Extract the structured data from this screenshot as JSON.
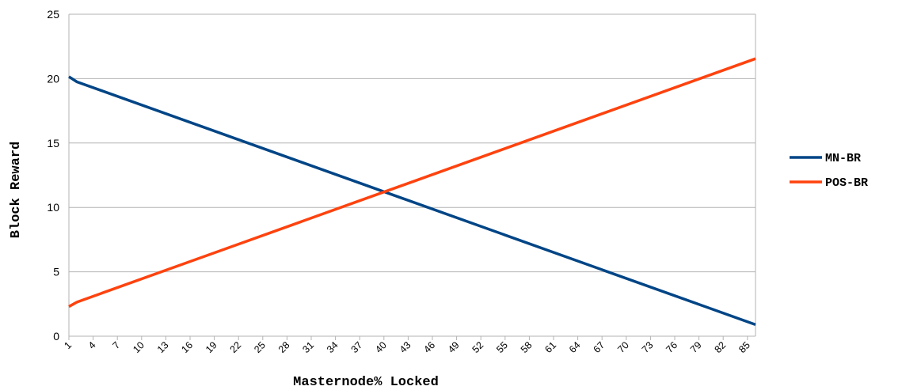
{
  "chart_data": {
    "type": "line",
    "xlabel": "Masternode% Locked",
    "ylabel": "Block Reward",
    "ylim": [
      0,
      25
    ],
    "yticks": [
      0,
      5,
      10,
      15,
      20,
      25
    ],
    "xlim": [
      1,
      86
    ],
    "xticks": [
      1,
      4,
      7,
      10,
      13,
      16,
      19,
      22,
      25,
      28,
      31,
      34,
      37,
      40,
      43,
      46,
      49,
      52,
      55,
      58,
      61,
      64,
      67,
      70,
      73,
      76,
      79,
      82,
      85
    ],
    "grid": true,
    "legend_position": "right",
    "series": [
      {
        "name": "MN-BR",
        "color": "#004586",
        "points": [
          [
            1,
            20.15
          ],
          [
            2,
            19.75
          ],
          [
            86,
            0.9
          ]
        ]
      },
      {
        "name": "POS-BR",
        "color": "#ff420e",
        "points": [
          [
            1,
            2.3
          ],
          [
            2,
            2.65
          ],
          [
            86,
            21.55
          ]
        ]
      }
    ]
  }
}
